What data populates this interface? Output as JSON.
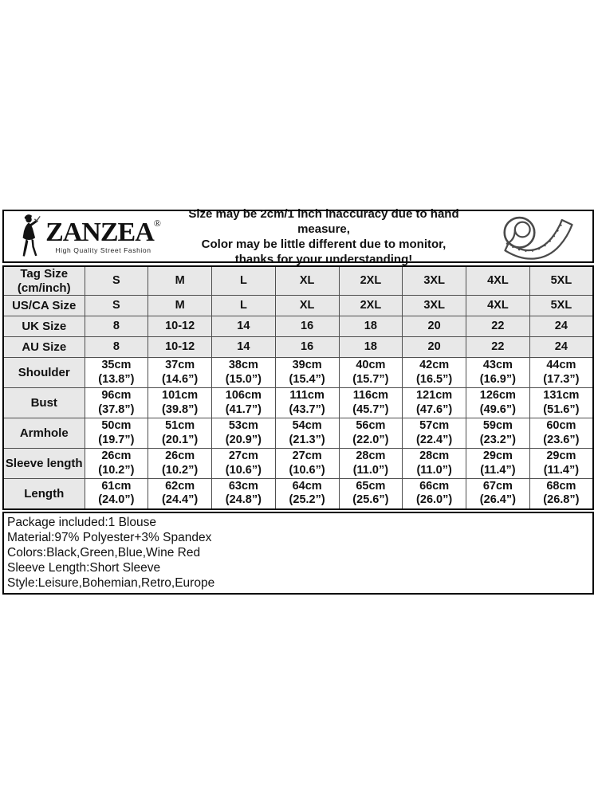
{
  "brand": {
    "name": "ZANZEA",
    "reg": "®",
    "tagline": "High Quality Street Fashion"
  },
  "notice": {
    "lines": [
      "Size may be 2cm/1 inch inaccuracy due to hand measure,",
      "Color may be little different due to monitor,",
      "thanks for your understanding!"
    ]
  },
  "icons": {
    "woman_figure": "woman-fashion-silhouette",
    "tape_measure": "measuring-tape"
  },
  "size_table": {
    "rows": [
      {
        "label": [
          "Tag Size",
          "(cm/inch)"
        ],
        "shaded": true,
        "h": 36,
        "cells": [
          "S",
          "M",
          "L",
          "XL",
          "2XL",
          "3XL",
          "4XL",
          "5XL"
        ]
      },
      {
        "label": [
          "US/CA Size"
        ],
        "shaded": true,
        "h": 26,
        "cells": [
          "S",
          "M",
          "L",
          "XL",
          "2XL",
          "3XL",
          "4XL",
          "5XL"
        ]
      },
      {
        "label": [
          "UK Size"
        ],
        "shaded": true,
        "h": 26,
        "cells": [
          "8",
          "10-12",
          "14",
          "16",
          "18",
          "20",
          "22",
          "24"
        ]
      },
      {
        "label": [
          "AU Size"
        ],
        "shaded": true,
        "h": 26,
        "cells": [
          "8",
          "10-12",
          "14",
          "16",
          "18",
          "20",
          "22",
          "24"
        ]
      },
      {
        "label": [
          "Shoulder"
        ],
        "shaded": false,
        "h": 38,
        "cells": [
          [
            "35cm",
            "(13.8”)"
          ],
          [
            "37cm",
            "(14.6”)"
          ],
          [
            "38cm",
            "(15.0”)"
          ],
          [
            "39cm",
            "(15.4”)"
          ],
          [
            "40cm",
            "(15.7”)"
          ],
          [
            "42cm",
            "(16.5”)"
          ],
          [
            "43cm",
            "(16.9”)"
          ],
          [
            "44cm",
            "(17.3”)"
          ]
        ]
      },
      {
        "label": [
          "Bust"
        ],
        "shaded": false,
        "h": 38,
        "cells": [
          [
            "96cm",
            "(37.8”)"
          ],
          [
            "101cm",
            "(39.8”)"
          ],
          [
            "106cm",
            "(41.7”)"
          ],
          [
            "111cm",
            "(43.7”)"
          ],
          [
            "116cm",
            "(45.7”)"
          ],
          [
            "121cm",
            "(47.6”)"
          ],
          [
            "126cm",
            "(49.6”)"
          ],
          [
            "131cm",
            "(51.6”)"
          ]
        ]
      },
      {
        "label": [
          "Armhole"
        ],
        "shaded": false,
        "h": 38,
        "cells": [
          [
            "50cm",
            "(19.7”)"
          ],
          [
            "51cm",
            "(20.1”)"
          ],
          [
            "53cm",
            "(20.9”)"
          ],
          [
            "54cm",
            "(21.3”)"
          ],
          [
            "56cm",
            "(22.0”)"
          ],
          [
            "57cm",
            "(22.4”)"
          ],
          [
            "59cm",
            "(23.2”)"
          ],
          [
            "60cm",
            "(23.6”)"
          ]
        ]
      },
      {
        "label": [
          "Sleeve length"
        ],
        "shaded": false,
        "h": 38,
        "cells": [
          [
            "26cm",
            "(10.2”)"
          ],
          [
            "26cm",
            "(10.2”)"
          ],
          [
            "27cm",
            "(10.6”)"
          ],
          [
            "27cm",
            "(10.6”)"
          ],
          [
            "28cm",
            "(11.0”)"
          ],
          [
            "28cm",
            "(11.0”)"
          ],
          [
            "29cm",
            "(11.4”)"
          ],
          [
            "29cm",
            "(11.4”)"
          ]
        ]
      },
      {
        "label": [
          "Length"
        ],
        "shaded": false,
        "h": 38,
        "cells": [
          [
            "61cm",
            "(24.0”)"
          ],
          [
            "62cm",
            "(24.4”)"
          ],
          [
            "63cm",
            "(24.8”)"
          ],
          [
            "64cm",
            "(25.2”)"
          ],
          [
            "65cm",
            "(25.6”)"
          ],
          [
            "66cm",
            "(26.0”)"
          ],
          [
            "67cm",
            "(26.4”)"
          ],
          [
            "68cm",
            "(26.8”)"
          ]
        ]
      }
    ]
  },
  "details": {
    "lines": [
      "Package included:1 Blouse",
      "Material:97% Polyester+3% Spandex",
      "Colors:Black,Green,Blue,Wine Red",
      "Sleeve Length:Short Sleeve",
      "Style:Leisure,Bohemian,Retro,Europe"
    ]
  },
  "colors": {
    "ink": "#111111",
    "cell_shade": "#e8e8e8",
    "border_dark": "#000000",
    "border_inner": "#4f4f4f"
  }
}
